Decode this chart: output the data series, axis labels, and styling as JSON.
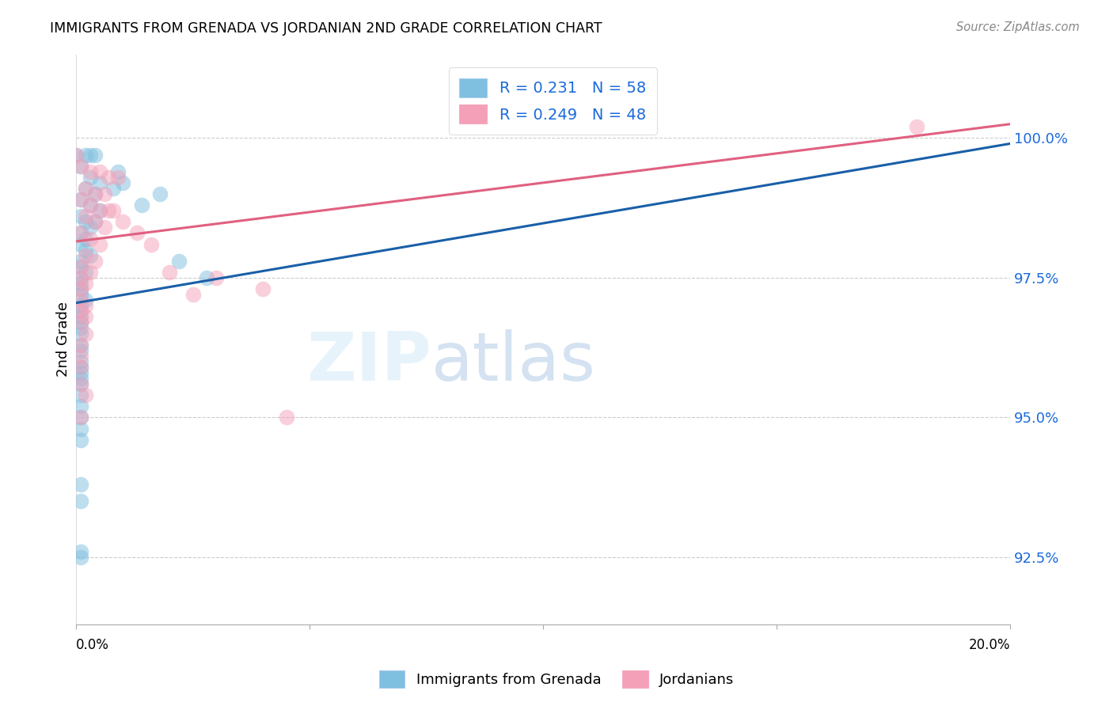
{
  "title": "IMMIGRANTS FROM GRENADA VS JORDANIAN 2ND GRADE CORRELATION CHART",
  "source": "Source: ZipAtlas.com",
  "ylabel": "2nd Grade",
  "yticks": [
    92.5,
    95.0,
    97.5,
    100.0
  ],
  "ytick_labels": [
    "92.5%",
    "95.0%",
    "97.5%",
    "100.0%"
  ],
  "xlim": [
    0.0,
    0.2
  ],
  "ylim": [
    91.3,
    101.5
  ],
  "scatter_blue_color": "#7fbfdf",
  "scatter_pink_color": "#f4a0b8",
  "line_blue_color": "#1a5fa8",
  "line_pink_color": "#e06080",
  "watermark_zip": "ZIP",
  "watermark_atlas": "atlas",
  "legend_label_blue": "R = 0.231   N = 58",
  "legend_label_pink": "R = 0.249   N = 48",
  "legend_label_color": "#1a6adc",
  "blue_line_x": [
    0.0,
    0.2
  ],
  "blue_line_y": [
    97.05,
    99.9
  ],
  "pink_line_x": [
    0.0,
    0.2
  ],
  "pink_line_y": [
    98.15,
    100.25
  ],
  "blue_points": [
    [
      0.0,
      99.7
    ],
    [
      0.002,
      99.7
    ],
    [
      0.003,
      99.7
    ],
    [
      0.004,
      99.7
    ],
    [
      0.001,
      99.5
    ],
    [
      0.003,
      99.3
    ],
    [
      0.005,
      99.2
    ],
    [
      0.002,
      99.1
    ],
    [
      0.004,
      99.0
    ],
    [
      0.001,
      98.9
    ],
    [
      0.003,
      98.8
    ],
    [
      0.005,
      98.7
    ],
    [
      0.001,
      98.6
    ],
    [
      0.002,
      98.5
    ],
    [
      0.004,
      98.5
    ],
    [
      0.003,
      98.4
    ],
    [
      0.001,
      98.3
    ],
    [
      0.002,
      98.2
    ],
    [
      0.001,
      98.1
    ],
    [
      0.002,
      98.0
    ],
    [
      0.003,
      97.9
    ],
    [
      0.001,
      97.8
    ],
    [
      0.001,
      97.7
    ],
    [
      0.002,
      97.6
    ],
    [
      0.001,
      97.5
    ],
    [
      0.001,
      97.4
    ],
    [
      0.001,
      97.3
    ],
    [
      0.001,
      97.2
    ],
    [
      0.002,
      97.1
    ],
    [
      0.001,
      97.0
    ],
    [
      0.001,
      96.9
    ],
    [
      0.001,
      96.8
    ],
    [
      0.001,
      96.7
    ],
    [
      0.001,
      96.6
    ],
    [
      0.001,
      96.5
    ],
    [
      0.001,
      96.3
    ],
    [
      0.001,
      96.2
    ],
    [
      0.001,
      96.0
    ],
    [
      0.001,
      95.9
    ],
    [
      0.001,
      95.8
    ],
    [
      0.001,
      95.7
    ],
    [
      0.001,
      95.6
    ],
    [
      0.001,
      95.4
    ],
    [
      0.001,
      95.2
    ],
    [
      0.001,
      95.0
    ],
    [
      0.001,
      94.8
    ],
    [
      0.001,
      94.6
    ],
    [
      0.001,
      93.8
    ],
    [
      0.001,
      92.6
    ],
    [
      0.001,
      92.5
    ],
    [
      0.008,
      99.1
    ],
    [
      0.009,
      99.4
    ],
    [
      0.01,
      99.2
    ],
    [
      0.014,
      98.8
    ],
    [
      0.018,
      99.0
    ],
    [
      0.022,
      97.8
    ],
    [
      0.028,
      97.5
    ],
    [
      0.001,
      93.5
    ]
  ],
  "pink_points": [
    [
      0.0,
      99.7
    ],
    [
      0.001,
      99.5
    ],
    [
      0.003,
      99.4
    ],
    [
      0.005,
      99.4
    ],
    [
      0.007,
      99.3
    ],
    [
      0.009,
      99.3
    ],
    [
      0.002,
      99.1
    ],
    [
      0.004,
      99.0
    ],
    [
      0.006,
      99.0
    ],
    [
      0.001,
      98.9
    ],
    [
      0.003,
      98.8
    ],
    [
      0.005,
      98.7
    ],
    [
      0.007,
      98.7
    ],
    [
      0.002,
      98.6
    ],
    [
      0.004,
      98.5
    ],
    [
      0.006,
      98.4
    ],
    [
      0.001,
      98.3
    ],
    [
      0.003,
      98.2
    ],
    [
      0.005,
      98.1
    ],
    [
      0.002,
      97.9
    ],
    [
      0.004,
      97.8
    ],
    [
      0.001,
      97.7
    ],
    [
      0.003,
      97.6
    ],
    [
      0.001,
      97.5
    ],
    [
      0.002,
      97.4
    ],
    [
      0.001,
      97.3
    ],
    [
      0.001,
      97.1
    ],
    [
      0.002,
      97.0
    ],
    [
      0.001,
      96.9
    ],
    [
      0.002,
      96.8
    ],
    [
      0.001,
      96.7
    ],
    [
      0.002,
      96.5
    ],
    [
      0.001,
      96.3
    ],
    [
      0.001,
      96.1
    ],
    [
      0.001,
      95.9
    ],
    [
      0.001,
      95.6
    ],
    [
      0.002,
      95.4
    ],
    [
      0.001,
      95.0
    ],
    [
      0.008,
      98.7
    ],
    [
      0.01,
      98.5
    ],
    [
      0.013,
      98.3
    ],
    [
      0.016,
      98.1
    ],
    [
      0.02,
      97.6
    ],
    [
      0.025,
      97.2
    ],
    [
      0.03,
      97.5
    ],
    [
      0.04,
      97.3
    ],
    [
      0.045,
      95.0
    ],
    [
      0.18,
      100.2
    ]
  ]
}
